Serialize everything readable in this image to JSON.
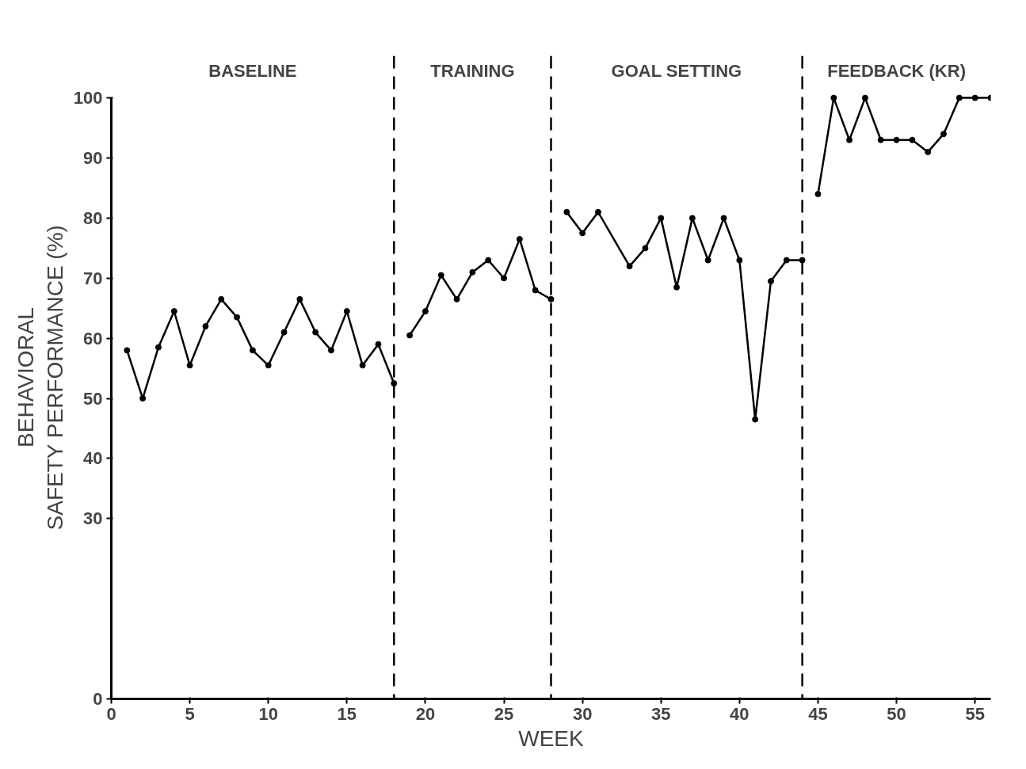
{
  "chart_data": {
    "type": "line",
    "xlabel": "WEEK",
    "ylabel": "BEHAVIORAL\nSAFETY PERFORMANCE (%)",
    "xlim": [
      0,
      56
    ],
    "xticks": [
      0,
      5,
      10,
      15,
      20,
      25,
      30,
      35,
      40,
      45,
      50,
      55
    ],
    "ylim": [
      0,
      100
    ],
    "yticks": [
      0,
      30,
      40,
      50,
      60,
      70,
      80,
      90,
      100
    ],
    "grid": false,
    "marker": "circle",
    "line_style": "solid",
    "series": [
      {
        "color": "#000000",
        "x": [
          1,
          2,
          3,
          4,
          5,
          6,
          7,
          8,
          9,
          10,
          11,
          12,
          13,
          14,
          15,
          16,
          17,
          18
        ],
        "values": [
          58,
          50,
          58.5,
          64.5,
          55.5,
          62,
          66.5,
          63.5,
          58,
          55.5,
          61,
          66.5,
          61,
          58,
          64.5,
          55.5,
          59,
          52.5
        ]
      },
      {
        "color": "#000000",
        "x": [
          19,
          20,
          21,
          22,
          23,
          24,
          25,
          26,
          27,
          28
        ],
        "values": [
          60.5,
          64.5,
          70.5,
          66.5,
          71,
          73,
          70,
          76.5,
          68,
          66.5
        ]
      },
      {
        "color": "#000000",
        "x": [
          29,
          30,
          31,
          33,
          34,
          35,
          36,
          37,
          38,
          39,
          40,
          41,
          42,
          43,
          44
        ],
        "values": [
          81,
          77.5,
          81,
          72,
          75,
          80,
          68.5,
          80,
          73,
          80,
          73,
          46.5,
          69.5,
          73,
          73
        ]
      },
      {
        "color": "#000000",
        "x": [
          45,
          46,
          47,
          48,
          49,
          50,
          51,
          52,
          53,
          54,
          55,
          56
        ],
        "values": [
          84,
          100,
          93,
          100,
          93,
          93,
          93,
          91,
          94,
          100,
          100,
          100
        ]
      }
    ],
    "ref_lines": [
      {
        "axis": "x",
        "value": 18,
        "line_style": "dashed",
        "color": "#000000"
      },
      {
        "axis": "x",
        "value": 28,
        "line_style": "dashed",
        "color": "#000000"
      },
      {
        "axis": "x",
        "value": 44,
        "line_style": "dashed",
        "color": "#000000"
      }
    ],
    "annotations": [
      "BASELINE",
      "TRAINING",
      "GOAL SETTING",
      "FEEDBACK (KR)"
    ]
  }
}
